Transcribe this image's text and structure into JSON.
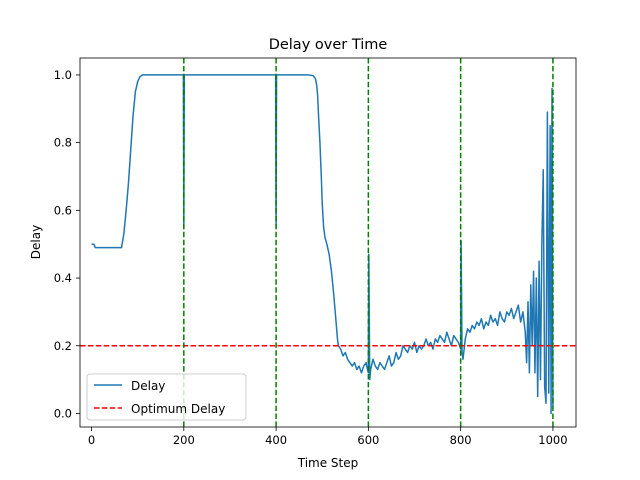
{
  "chart_data": {
    "type": "line",
    "title": "Delay over Time",
    "xlabel": "Time Step",
    "ylabel": "Delay",
    "xlim": [
      -25,
      1050
    ],
    "ylim": [
      -0.04,
      1.05
    ],
    "xticks": [
      0,
      200,
      400,
      600,
      800,
      1000
    ],
    "yticks": [
      0.0,
      0.2,
      0.4,
      0.6,
      0.8,
      1.0
    ],
    "xtick_labels": [
      "0",
      "200",
      "400",
      "600",
      "800",
      "1000"
    ],
    "ytick_labels": [
      "0.0",
      "0.2",
      "0.4",
      "0.6",
      "0.8",
      "1.0"
    ],
    "grid": false,
    "legend_position": "lower-left",
    "series": [
      {
        "name": "Delay",
        "color": "#1f77b4",
        "style": "solid",
        "x": [
          0,
          5,
          8,
          12,
          20,
          30,
          40,
          50,
          60,
          65,
          70,
          75,
          80,
          85,
          90,
          95,
          100,
          105,
          110,
          115,
          120,
          130,
          150,
          195,
          199,
          200,
          201,
          205,
          250,
          300,
          350,
          395,
          399,
          400,
          401,
          405,
          450,
          470,
          480,
          485,
          488,
          490,
          492,
          495,
          498,
          500,
          503,
          506,
          510,
          515,
          520,
          525,
          530,
          533,
          535,
          540,
          545,
          550,
          555,
          560,
          565,
          570,
          575,
          580,
          585,
          590,
          595,
          598,
          600,
          601,
          603,
          605,
          610,
          615,
          620,
          625,
          630,
          635,
          640,
          645,
          650,
          655,
          660,
          665,
          670,
          675,
          680,
          685,
          690,
          695,
          700,
          705,
          710,
          715,
          720,
          725,
          730,
          735,
          740,
          745,
          750,
          755,
          760,
          765,
          770,
          775,
          780,
          785,
          790,
          795,
          798,
          800,
          801,
          803,
          805,
          810,
          815,
          820,
          825,
          830,
          835,
          840,
          845,
          850,
          855,
          860,
          865,
          870,
          875,
          880,
          885,
          890,
          895,
          900,
          905,
          910,
          915,
          920,
          925,
          930,
          935,
          940,
          943,
          946,
          949,
          952,
          955,
          958,
          961,
          964,
          967,
          970,
          973,
          976,
          979,
          982,
          985,
          988,
          991,
          994,
          996,
          998,
          1000
        ],
        "y": [
          0.5,
          0.5,
          0.49,
          0.49,
          0.49,
          0.49,
          0.49,
          0.49,
          0.49,
          0.49,
          0.53,
          0.6,
          0.68,
          0.78,
          0.88,
          0.95,
          0.98,
          0.995,
          1.0,
          1.0,
          1.0,
          1.0,
          1.0,
          1.0,
          1.0,
          0.55,
          1.0,
          1.0,
          1.0,
          1.0,
          1.0,
          1.0,
          1.0,
          0.55,
          1.0,
          1.0,
          1.0,
          1.0,
          0.998,
          0.99,
          0.97,
          0.94,
          0.88,
          0.8,
          0.7,
          0.62,
          0.55,
          0.52,
          0.5,
          0.47,
          0.42,
          0.35,
          0.27,
          0.22,
          0.2,
          0.19,
          0.17,
          0.18,
          0.16,
          0.15,
          0.14,
          0.15,
          0.13,
          0.14,
          0.12,
          0.14,
          0.15,
          0.13,
          0.12,
          0.47,
          0.1,
          0.13,
          0.16,
          0.14,
          0.13,
          0.15,
          0.14,
          0.13,
          0.15,
          0.17,
          0.14,
          0.15,
          0.18,
          0.16,
          0.17,
          0.2,
          0.19,
          0.18,
          0.2,
          0.19,
          0.21,
          0.18,
          0.2,
          0.19,
          0.2,
          0.22,
          0.2,
          0.21,
          0.19,
          0.22,
          0.21,
          0.23,
          0.22,
          0.21,
          0.24,
          0.22,
          0.2,
          0.23,
          0.22,
          0.21,
          0.2,
          0.19,
          0.51,
          0.18,
          0.16,
          0.22,
          0.25,
          0.24,
          0.26,
          0.25,
          0.27,
          0.26,
          0.28,
          0.25,
          0.27,
          0.26,
          0.29,
          0.27,
          0.28,
          0.26,
          0.3,
          0.28,
          0.27,
          0.3,
          0.29,
          0.31,
          0.28,
          0.3,
          0.32,
          0.27,
          0.3,
          0.24,
          0.15,
          0.33,
          0.12,
          0.38,
          0.2,
          0.42,
          0.12,
          0.4,
          0.05,
          0.45,
          0.1,
          0.5,
          0.72,
          0.08,
          0.03,
          0.89,
          0.06,
          0.85,
          0.0,
          0.96,
          0.02
        ]
      },
      {
        "name": "Optimum Delay",
        "color": "#ff0000",
        "style": "dashed",
        "y": 0.2
      }
    ],
    "vlines": {
      "color": "#008000",
      "style": "dashed",
      "x": [
        200,
        400,
        600,
        800,
        1000
      ]
    }
  }
}
